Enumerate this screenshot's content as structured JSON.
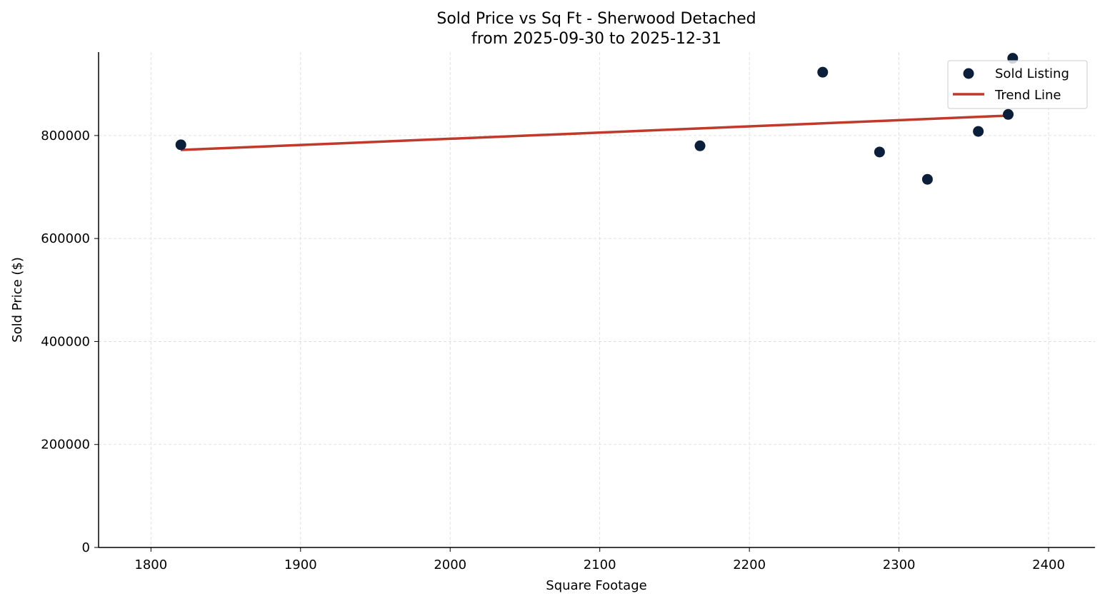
{
  "chart_data": {
    "type": "scatter",
    "title": "Sold Price vs Sq Ft - Sherwood Detached",
    "subtitle": "from 2025-09-30 to 2025-12-31",
    "xlabel": "Square Footage",
    "ylabel": "Sold Price ($)",
    "xlim": [
      1765,
      2431
    ],
    "ylim": [
      0,
      962000
    ],
    "xticks": [
      1800,
      1900,
      2000,
      2100,
      2200,
      2300,
      2400
    ],
    "yticks": [
      0,
      200000,
      400000,
      600000,
      800000
    ],
    "grid": true,
    "legend_position": "top-right",
    "series": [
      {
        "name": "Sold Listing",
        "kind": "scatter",
        "color": "#0b1f3a",
        "points": [
          {
            "x": 1820,
            "y": 782000
          },
          {
            "x": 2167,
            "y": 780000
          },
          {
            "x": 2249,
            "y": 923000
          },
          {
            "x": 2287,
            "y": 768000
          },
          {
            "x": 2319,
            "y": 715000
          },
          {
            "x": 2353,
            "y": 808000
          },
          {
            "x": 2373,
            "y": 841000
          },
          {
            "x": 2376,
            "y": 950000
          }
        ]
      },
      {
        "name": "Trend Line",
        "kind": "line",
        "color": "#c0392b",
        "points": [
          {
            "x": 1820,
            "y": 772000
          },
          {
            "x": 2376,
            "y": 839000
          }
        ]
      }
    ]
  }
}
